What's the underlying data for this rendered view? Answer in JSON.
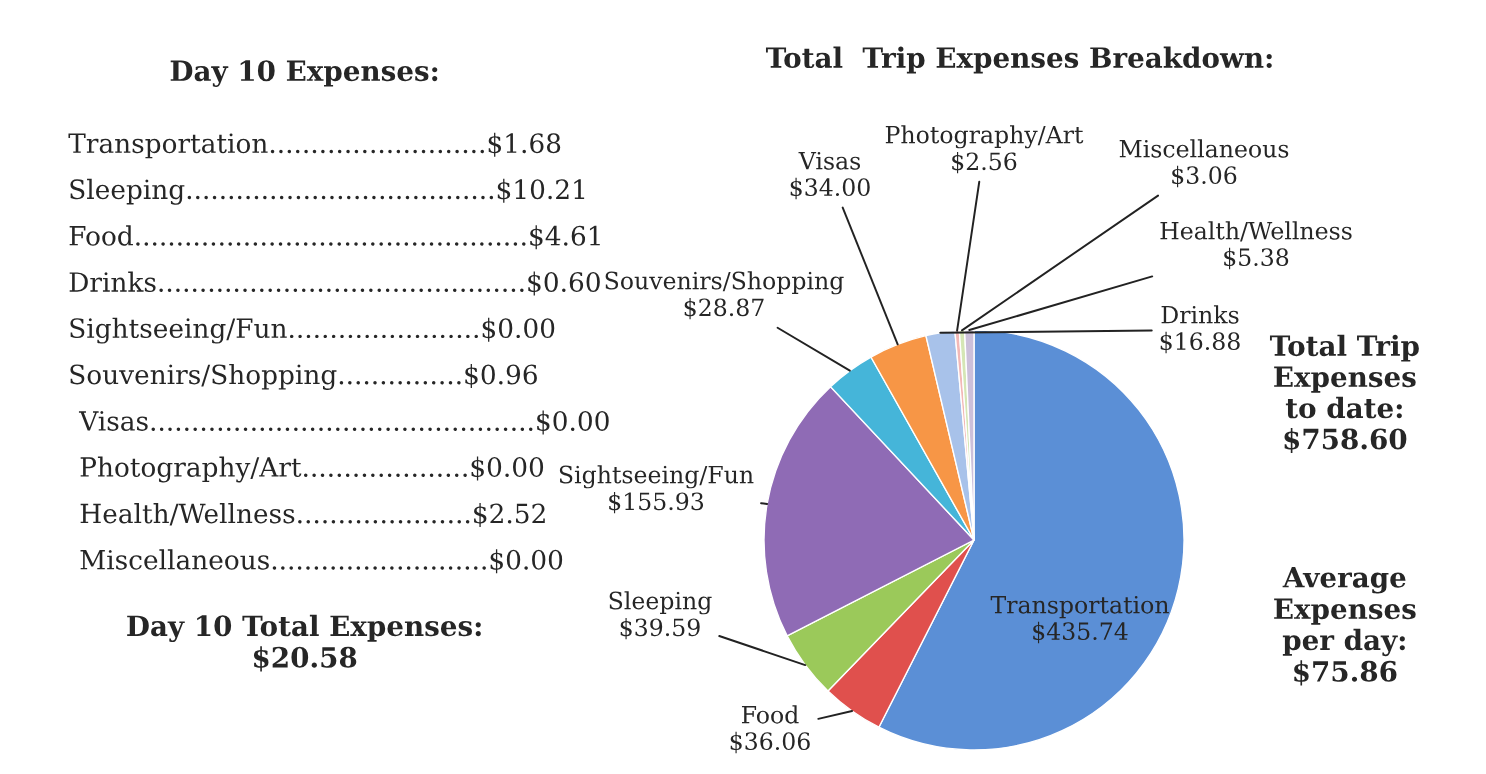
{
  "chart_data": [
    {
      "type": "other",
      "title": "Day 10 Expenses:",
      "annotations": [
        "Transportation..........................$1.68",
        "Sleeping.....................................$10.21",
        "Food...............................................$4.61",
        "Drinks............................................$0.60",
        "Sightseeing/Fun.......................$0.00",
        "Souvenirs/Shopping...............$0.96",
        "Visas..............................................$0.00",
        "Photography/Art....................$0.00",
        "Health/Wellness.....................$2.52",
        "Miscellaneous..........................$0.00",
        "Day 10 Total Expenses:\n$20.58"
      ]
    },
    {
      "type": "pie",
      "title": "Total  Trip Expenses Breakdown:",
      "categories": [
        "Transportation",
        "Food",
        "Sleeping",
        "Sightseeing/Fun",
        "Souvenirs/Shopping",
        "Visas",
        "Drinks",
        "Photography/Art",
        "Miscellaneous",
        "Health/Wellness"
      ],
      "values": [
        435.74,
        36.06,
        39.59,
        155.93,
        28.87,
        34.0,
        16.88,
        2.56,
        3.06,
        5.38
      ],
      "value_labels": [
        "$435.74",
        "$36.06",
        "$39.59",
        "$155.93",
        "$28.87",
        "$34.00",
        "$16.88",
        "$2.56",
        "$3.06",
        "$5.38"
      ],
      "colors": [
        "#5b8fd6",
        "#e0504d",
        "#9bc95a",
        "#8f6bb5",
        "#45b5d9",
        "#f79646",
        "#a8c2ea",
        "#f2b8b6",
        "#d5e6b5",
        "#ccc0da"
      ],
      "annotations": [
        "Total Trip\nExpenses\nto date:\n$758.60",
        "Average\nExpenses\nper day:\n$75.86"
      ]
    }
  ]
}
